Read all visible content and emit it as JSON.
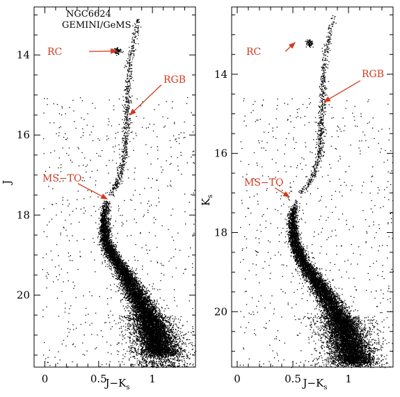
{
  "colors": {
    "points": "#000000",
    "annotation": "#d23a1e",
    "frame": "#000000",
    "background": "#ffffff"
  },
  "chart_data": [
    {
      "type": "scatter",
      "title_lines": [
        "NGC6624",
        "GEMINI/GeMS"
      ],
      "xlabel": {
        "main": "J−K",
        "sub": "s"
      },
      "ylabel": {
        "main": "J",
        "sub": ""
      },
      "xlim": [
        -0.1,
        1.4
      ],
      "ylim": [
        21.8,
        12.8
      ],
      "y_inverted": true,
      "xticks": [
        0,
        0.5,
        1
      ],
      "xtick_labels": [
        "0",
        "0.5",
        "1"
      ],
      "yticks": [
        14,
        16,
        18,
        20
      ],
      "ytick_labels": [
        "14",
        "16",
        "18",
        "20"
      ],
      "grid": false,
      "annotations": [
        {
          "label": "RC",
          "target": [
            0.67,
            13.9
          ]
        },
        {
          "label": "RGB",
          "target": [
            0.79,
            15.5
          ]
        },
        {
          "label": "MS−TO",
          "target": [
            0.58,
            17.6
          ]
        }
      ],
      "features": {
        "red_clump": {
          "x": 0.67,
          "y": 13.9
        },
        "rgb_ridge": [
          [
            0.87,
            13.1
          ],
          [
            0.78,
            14.2
          ],
          [
            0.76,
            15.5
          ],
          [
            0.74,
            16.5
          ],
          [
            0.67,
            17.2
          ],
          [
            0.6,
            17.5
          ]
        ],
        "ms_ridge": [
          [
            0.58,
            17.6
          ],
          [
            0.55,
            18.0
          ],
          [
            0.56,
            18.6
          ],
          [
            0.62,
            19.0
          ],
          [
            0.73,
            19.4
          ],
          [
            0.85,
            20.0
          ],
          [
            0.95,
            20.5
          ],
          [
            1.02,
            21.0
          ],
          [
            1.08,
            21.5
          ]
        ]
      }
    },
    {
      "type": "scatter",
      "xlabel": {
        "main": "J−K",
        "sub": "s"
      },
      "ylabel": {
        "main": "K",
        "sub": "s"
      },
      "xlim": [
        -0.05,
        1.4
      ],
      "ylim": [
        21.4,
        12.3
      ],
      "y_inverted": true,
      "xticks": [
        0,
        0.5,
        1
      ],
      "xtick_labels": [
        "0",
        "0.5",
        "1"
      ],
      "yticks": [
        14,
        16,
        18,
        20
      ],
      "ytick_labels": [
        "14",
        "16",
        "18",
        "20"
      ],
      "grid": false,
      "annotations": [
        {
          "label": "RC",
          "target": [
            0.52,
            13.2
          ]
        },
        {
          "label": "RGB",
          "target": [
            0.78,
            14.7
          ]
        },
        {
          "label": "MS−TO",
          "target": [
            0.47,
            17.1
          ]
        }
      ],
      "features": {
        "red_clump": {
          "x": 0.65,
          "y": 13.2
        },
        "rgb_ridge": [
          [
            0.86,
            12.5
          ],
          [
            0.78,
            13.6
          ],
          [
            0.76,
            14.8
          ],
          [
            0.74,
            16.0
          ],
          [
            0.66,
            16.7
          ],
          [
            0.56,
            17.0
          ]
        ],
        "ms_ridge": [
          [
            0.52,
            17.2
          ],
          [
            0.49,
            17.6
          ],
          [
            0.51,
            18.2
          ],
          [
            0.58,
            18.7
          ],
          [
            0.7,
            19.2
          ],
          [
            0.84,
            19.8
          ],
          [
            0.94,
            20.3
          ],
          [
            1.0,
            20.8
          ],
          [
            1.06,
            21.3
          ]
        ]
      }
    }
  ]
}
